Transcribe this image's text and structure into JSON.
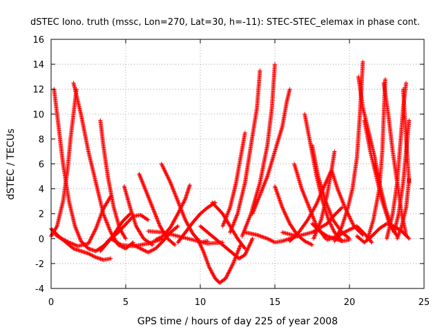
{
  "chart_data": {
    "type": "scatter",
    "title": "dSTEC Iono. truth (mssc, Lon=270, Lat=30, h=-11): STEC-STEC_elemax in phase cont.",
    "xlabel": "GPS time / hours of day 225 of year 2008",
    "ylabel": "dSTEC  / TECUs",
    "xlim": [
      0,
      25
    ],
    "ylim": [
      -4,
      16
    ],
    "xticks": [
      0,
      5,
      10,
      15,
      20,
      25
    ],
    "yticks": [
      -4,
      -2,
      0,
      2,
      4,
      6,
      8,
      10,
      12,
      14,
      16
    ],
    "grid": true,
    "marker": "+",
    "color": "#ff0000",
    "series": [
      {
        "points": [
          [
            0.2,
            12.0
          ],
          [
            0.5,
            9.0
          ],
          [
            0.8,
            6.0
          ],
          [
            1.2,
            3.0
          ],
          [
            1.6,
            1.0
          ],
          [
            2.0,
            -0.2
          ],
          [
            2.5,
            -0.8
          ],
          [
            3.0,
            -1.0
          ],
          [
            3.5,
            -0.6
          ],
          [
            4.0,
            0.0
          ]
        ]
      },
      {
        "points": [
          [
            0.0,
            0.2
          ],
          [
            0.4,
            1.0
          ],
          [
            0.8,
            3.0
          ],
          [
            1.1,
            5.5
          ],
          [
            1.3,
            8.0
          ],
          [
            1.5,
            10.0
          ],
          [
            1.7,
            12.0
          ]
        ]
      },
      {
        "points": [
          [
            1.5,
            12.5
          ],
          [
            2.0,
            10.0
          ],
          [
            2.5,
            7.0
          ],
          [
            3.0,
            4.5
          ],
          [
            3.5,
            2.0
          ],
          [
            4.0,
            0.5
          ],
          [
            4.5,
            -0.5
          ],
          [
            5.0,
            -0.8
          ],
          [
            5.5,
            -0.3
          ]
        ]
      },
      {
        "points": [
          [
            0.0,
            0.8
          ],
          [
            0.5,
            0.2
          ],
          [
            1.0,
            -0.3
          ],
          [
            1.5,
            -0.8
          ],
          [
            2.0,
            -1.0
          ],
          [
            2.5,
            -1.2
          ],
          [
            3.0,
            -1.5
          ],
          [
            3.5,
            -1.7
          ],
          [
            4.0,
            -1.6
          ]
        ]
      },
      {
        "points": [
          [
            0.3,
            0.3
          ],
          [
            0.7,
            0.0
          ],
          [
            1.2,
            -0.3
          ],
          [
            1.8,
            -0.6
          ],
          [
            2.5,
            -0.4
          ],
          [
            3.0,
            0.8
          ],
          [
            3.5,
            2.4
          ],
          [
            4.0,
            3.4
          ]
        ]
      },
      {
        "points": [
          [
            3.3,
            9.5
          ],
          [
            3.5,
            7.5
          ],
          [
            3.8,
            5.0
          ],
          [
            4.2,
            2.5
          ],
          [
            4.6,
            0.8
          ],
          [
            5.0,
            0.0
          ]
        ]
      },
      {
        "points": [
          [
            3.3,
            -1.0
          ],
          [
            3.8,
            -0.3
          ],
          [
            4.3,
            0.5
          ],
          [
            4.8,
            1.4
          ],
          [
            5.3,
            2.0
          ]
        ]
      },
      {
        "points": [
          [
            3.8,
            -0.2
          ],
          [
            4.5,
            0.5
          ],
          [
            5.5,
            1.8
          ],
          [
            6.0,
            1.9
          ],
          [
            6.5,
            1.5
          ]
        ]
      },
      {
        "points": [
          [
            4.0,
            0.0
          ],
          [
            4.7,
            -0.5
          ],
          [
            5.5,
            -0.6
          ],
          [
            6.5,
            -0.4
          ],
          [
            7.5,
            0.0
          ]
        ]
      },
      {
        "points": [
          [
            4.9,
            4.2
          ],
          [
            5.3,
            2.5
          ],
          [
            5.7,
            1.0
          ],
          [
            6.2,
            0.0
          ],
          [
            6.8,
            -0.5
          ]
        ]
      },
      {
        "points": [
          [
            5.9,
            5.2
          ],
          [
            6.3,
            4.0
          ],
          [
            6.8,
            2.5
          ],
          [
            7.3,
            1.0
          ],
          [
            7.8,
            0.0
          ],
          [
            8.3,
            -0.5
          ]
        ]
      },
      {
        "points": [
          [
            5.5,
            -0.5
          ],
          [
            6.0,
            -0.8
          ],
          [
            6.5,
            -1.1
          ],
          [
            7.0,
            -0.8
          ],
          [
            7.5,
            -0.2
          ],
          [
            8.0,
            0.5
          ],
          [
            8.5,
            1.0
          ]
        ]
      },
      {
        "points": [
          [
            7.4,
            6.0
          ],
          [
            8.0,
            4.5
          ],
          [
            8.5,
            3.0
          ],
          [
            9.0,
            1.5
          ],
          [
            9.5,
            0.4
          ],
          [
            10.0,
            -0.3
          ],
          [
            10.5,
            -0.2
          ]
        ]
      },
      {
        "points": [
          [
            7.0,
            -0.1
          ],
          [
            7.5,
            0.2
          ],
          [
            8.0,
            0.9
          ],
          [
            8.5,
            2.0
          ],
          [
            9.0,
            3.2
          ],
          [
            9.3,
            4.3
          ]
        ]
      },
      {
        "points": [
          [
            8.5,
            -0.3
          ],
          [
            9.0,
            0.5
          ],
          [
            9.5,
            1.3
          ],
          [
            10.0,
            2.0
          ],
          [
            10.5,
            2.5
          ],
          [
            11.0,
            2.9
          ]
        ]
      },
      {
        "points": [
          [
            6.5,
            0.6
          ],
          [
            7.5,
            0.5
          ],
          [
            8.5,
            0.2
          ],
          [
            9.5,
            -0.1
          ],
          [
            10.5,
            -0.4
          ],
          [
            11.5,
            -0.3
          ]
        ]
      },
      {
        "points": [
          [
            9.8,
            0.0
          ],
          [
            10.2,
            -1.0
          ],
          [
            10.6,
            -2.3
          ],
          [
            11.0,
            -3.2
          ],
          [
            11.3,
            -3.55
          ],
          [
            11.7,
            -3.2
          ],
          [
            12.2,
            -2.0
          ],
          [
            12.7,
            -0.5
          ]
        ]
      },
      {
        "points": [
          [
            10.0,
            1.0
          ],
          [
            10.8,
            0.2
          ],
          [
            11.5,
            -0.5
          ],
          [
            12.2,
            -1.2
          ],
          [
            12.6,
            -1.6
          ],
          [
            13.0,
            -1.3
          ],
          [
            13.5,
            0.0
          ]
        ]
      },
      {
        "points": [
          [
            11.5,
            1.0
          ],
          [
            12.0,
            2.5
          ],
          [
            12.4,
            4.5
          ],
          [
            12.7,
            6.5
          ],
          [
            13.0,
            8.5
          ]
        ]
      },
      {
        "points": [
          [
            10.8,
            2.9
          ],
          [
            11.5,
            2.0
          ],
          [
            12.0,
            1.0
          ],
          [
            12.5,
            0.0
          ],
          [
            13.0,
            -0.8
          ]
        ]
      },
      {
        "points": [
          [
            12.0,
            0.5
          ],
          [
            12.5,
            2.0
          ],
          [
            13.0,
            4.5
          ],
          [
            13.4,
            7.5
          ],
          [
            13.8,
            10.5
          ],
          [
            14.0,
            13.5
          ]
        ]
      },
      {
        "points": [
          [
            12.8,
            0.2
          ],
          [
            13.4,
            2.0
          ],
          [
            14.0,
            4.5
          ],
          [
            14.5,
            7.5
          ],
          [
            14.8,
            10.5
          ],
          [
            15.0,
            14.0
          ]
        ]
      },
      {
        "points": [
          [
            13.5,
            2.0
          ],
          [
            14.0,
            3.5
          ],
          [
            14.5,
            5.0
          ],
          [
            15.0,
            7.0
          ],
          [
            15.5,
            9.0
          ],
          [
            15.8,
            11.0
          ],
          [
            16.0,
            12.0
          ]
        ]
      },
      {
        "points": [
          [
            13.0,
            0.5
          ],
          [
            13.8,
            0.3
          ],
          [
            14.5,
            0.0
          ],
          [
            15.0,
            -0.3
          ],
          [
            15.5,
            -0.2
          ],
          [
            16.5,
            0.2
          ]
        ]
      },
      {
        "points": [
          [
            15.0,
            4.2
          ],
          [
            15.5,
            2.5
          ],
          [
            16.0,
            1.2
          ],
          [
            16.5,
            0.3
          ],
          [
            17.0,
            -0.2
          ],
          [
            17.5,
            -0.5
          ]
        ]
      },
      {
        "points": [
          [
            15.5,
            0.5
          ],
          [
            16.5,
            0.2
          ],
          [
            17.5,
            0.5
          ],
          [
            18.5,
            1.2
          ],
          [
            19.0,
            1.9
          ],
          [
            19.5,
            2.5
          ]
        ]
      },
      {
        "points": [
          [
            16.3,
            6.0
          ],
          [
            16.8,
            4.0
          ],
          [
            17.3,
            2.5
          ],
          [
            17.8,
            1.0
          ],
          [
            18.4,
            0.0
          ]
        ]
      },
      {
        "points": [
          [
            16.0,
            -0.2
          ],
          [
            16.6,
            0.5
          ],
          [
            17.2,
            1.5
          ],
          [
            17.8,
            2.8
          ],
          [
            18.3,
            4.2
          ],
          [
            18.8,
            5.5
          ]
        ]
      },
      {
        "points": [
          [
            17.0,
            10.0
          ],
          [
            17.4,
            7.5
          ],
          [
            17.8,
            5.0
          ],
          [
            18.2,
            3.0
          ],
          [
            18.6,
            1.5
          ],
          [
            19.0,
            0.5
          ],
          [
            19.5,
            -0.2
          ]
        ]
      },
      {
        "points": [
          [
            17.5,
            7.5
          ],
          [
            17.9,
            5.0
          ],
          [
            18.4,
            3.0
          ],
          [
            18.9,
            1.5
          ],
          [
            19.5,
            0.5
          ],
          [
            20.0,
            0.0
          ]
        ]
      },
      {
        "points": [
          [
            17.6,
            0.0
          ],
          [
            18.1,
            1.5
          ],
          [
            18.5,
            3.5
          ],
          [
            18.8,
            5.5
          ],
          [
            19.0,
            7.0
          ]
        ]
      },
      {
        "points": [
          [
            17.5,
            1.2
          ],
          [
            18.0,
            0.6
          ],
          [
            18.5,
            0.2
          ],
          [
            19.0,
            0.0
          ],
          [
            19.5,
            -0.2
          ],
          [
            20.0,
            -0.1
          ]
        ]
      },
      {
        "points": [
          [
            18.8,
            5.5
          ],
          [
            19.2,
            4.0
          ],
          [
            19.7,
            2.5
          ],
          [
            20.3,
            1.0
          ],
          [
            20.9,
            0.3
          ]
        ]
      },
      {
        "points": [
          [
            19.0,
            -0.2
          ],
          [
            19.5,
            1.0
          ],
          [
            19.9,
            2.5
          ],
          [
            20.2,
            4.0
          ],
          [
            20.5,
            6.5
          ],
          [
            20.7,
            10.0
          ],
          [
            20.9,
            14.2
          ]
        ]
      },
      {
        "points": [
          [
            20.6,
            13.0
          ],
          [
            20.9,
            10.5
          ],
          [
            21.3,
            8.5
          ],
          [
            21.7,
            6.5
          ],
          [
            22.0,
            4.5
          ],
          [
            22.4,
            2.5
          ],
          [
            22.8,
            1.0
          ],
          [
            23.2,
            0.2
          ]
        ]
      },
      {
        "points": [
          [
            21.0,
            9.5
          ],
          [
            21.4,
            7.0
          ],
          [
            21.8,
            5.0
          ],
          [
            22.2,
            3.0
          ],
          [
            22.6,
            1.5
          ],
          [
            23.0,
            0.5
          ]
        ]
      },
      {
        "points": [
          [
            21.2,
            -0.1
          ],
          [
            21.6,
            1.5
          ],
          [
            22.0,
            4.0
          ],
          [
            22.2,
            7.0
          ],
          [
            22.3,
            10.0
          ],
          [
            22.4,
            12.8
          ]
        ]
      },
      {
        "points": [
          [
            22.3,
            12.5
          ],
          [
            22.6,
            10.0
          ],
          [
            22.9,
            7.0
          ],
          [
            23.2,
            4.5
          ],
          [
            23.5,
            2.0
          ],
          [
            23.8,
            0.3
          ]
        ]
      },
      {
        "points": [
          [
            22.5,
            0.0
          ],
          [
            22.9,
            2.0
          ],
          [
            23.2,
            4.5
          ],
          [
            23.4,
            7.5
          ],
          [
            23.6,
            10.5
          ],
          [
            23.8,
            12.5
          ]
        ]
      },
      {
        "points": [
          [
            23.0,
            0.5
          ],
          [
            23.3,
            2.0
          ],
          [
            23.6,
            4.5
          ],
          [
            23.8,
            7.0
          ],
          [
            24.0,
            9.5
          ]
        ]
      },
      {
        "points": [
          [
            23.6,
            12.0
          ],
          [
            23.8,
            8.0
          ],
          [
            24.0,
            4.5
          ]
        ]
      },
      {
        "points": [
          [
            23.2,
            0.0
          ],
          [
            23.5,
            1.0
          ],
          [
            23.8,
            2.5
          ],
          [
            24.0,
            4.8
          ]
        ]
      },
      {
        "points": [
          [
            20.5,
            0.2
          ],
          [
            21.0,
            -0.3
          ],
          [
            21.5,
            0.2
          ],
          [
            22.0,
            0.8
          ],
          [
            22.5,
            1.2
          ],
          [
            23.0,
            1.0
          ],
          [
            23.5,
            0.6
          ],
          [
            24.0,
            0.0
          ]
        ]
      },
      {
        "points": [
          [
            18.5,
            -0.1
          ],
          [
            19.2,
            0.2
          ],
          [
            19.8,
            0.6
          ],
          [
            20.5,
            1.0
          ],
          [
            21.0,
            0.4
          ],
          [
            21.5,
            -0.3
          ]
        ]
      }
    ]
  }
}
